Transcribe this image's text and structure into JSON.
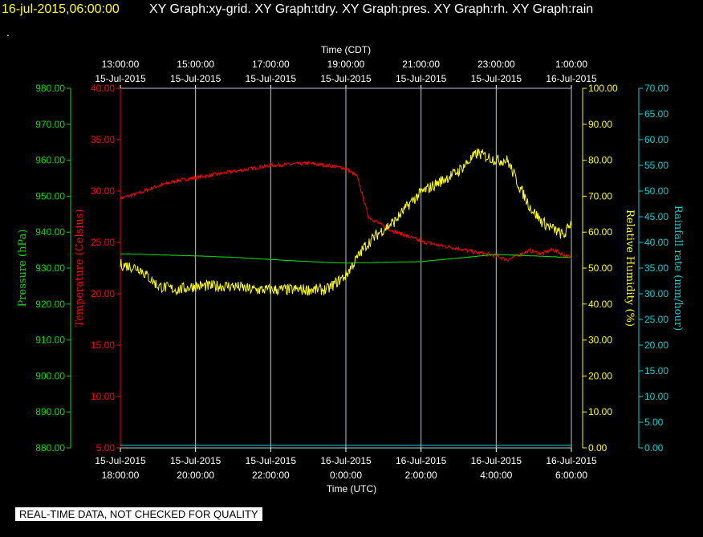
{
  "header": {
    "timestamp": "16-jul-2015,06:00:00",
    "graphs": "XY Graph:xy-grid.  XY Graph:tdry.  XY Graph:pres.  XY Graph:rh.  XY Graph:rain",
    "dot": "."
  },
  "footer": {
    "note": "REAL-TIME DATA, NOT CHECKED FOR QUALITY"
  },
  "colors": {
    "background": "#000000",
    "grid": "#b4c8d2",
    "pressure": "#00dd00",
    "temperature": "#ff0000",
    "humidity": "#ffff00",
    "rainfall": "#00d2d2",
    "text": "#ffffff"
  },
  "chart_data": {
    "type": "line",
    "grid": true,
    "x_range_hours_label": [
      "15-Jul-2015 18:00:00 UTC",
      "16-Jul-2015 6:00:00 UTC"
    ],
    "bottom_axis": {
      "label": "Time (UTC)",
      "ticks": [
        [
          "15-Jul-2015",
          "18:00:00"
        ],
        [
          "15-Jul-2015",
          "20:00:00"
        ],
        [
          "15-Jul-2015",
          "22:00:00"
        ],
        [
          "16-Jul-2015",
          "0:00:00"
        ],
        [
          "16-Jul-2015",
          "2:00:00"
        ],
        [
          "16-Jul-2015",
          "4:00:00"
        ],
        [
          "16-Jul-2015",
          "6:00:00"
        ]
      ]
    },
    "top_axis": {
      "label": "Time (CDT)",
      "ticks": [
        [
          "13:00:00",
          "15-Jul-2015"
        ],
        [
          "15:00:00",
          "15-Jul-2015"
        ],
        [
          "17:00:00",
          "15-Jul-2015"
        ],
        [
          "19:00:00",
          "15-Jul-2015"
        ],
        [
          "21:00:00",
          "15-Jul-2015"
        ],
        [
          "23:00:00",
          "15-Jul-2015"
        ],
        [
          "1:00:00",
          "16-Jul-2015"
        ]
      ]
    },
    "axes": {
      "pressure": {
        "label": "Pressure (hPa)",
        "min": 880,
        "max": 980,
        "ticks": [
          "880.00",
          "890.00",
          "900.00",
          "910.00",
          "920.00",
          "930.00",
          "940.00",
          "950.00",
          "960.00",
          "970.00",
          "980.00"
        ]
      },
      "temperature": {
        "label": "Temperature (Celsius)",
        "min": 5,
        "max": 40,
        "ticks": [
          "5.00",
          "10.00",
          "15.00",
          "20.00",
          "25.00",
          "30.00",
          "35.00",
          "40.00"
        ]
      },
      "humidity": {
        "label": "Relative Humidity (%)",
        "min": 0,
        "max": 100,
        "ticks": [
          "0.00",
          "10.00",
          "20.00",
          "30.00",
          "40.00",
          "50.00",
          "60.00",
          "70.00",
          "80.00",
          "90.00",
          "100.00"
        ]
      },
      "rainfall": {
        "label": "Rainfall rate (mm/hour)",
        "min": 0,
        "max": 70,
        "ticks": [
          "0.00",
          "5.00",
          "10.00",
          "15.00",
          "20.00",
          "25.00",
          "30.00",
          "35.00",
          "40.00",
          "45.00",
          "50.00",
          "55.00",
          "60.00",
          "65.00",
          "70.00"
        ]
      }
    },
    "series": [
      {
        "axis": "temperature",
        "hours": [
          0,
          0.5,
          1,
          1.5,
          2,
          2.5,
          3,
          3.5,
          4,
          4.5,
          5,
          5.5,
          6,
          6.3,
          6.6,
          6.9,
          7.2,
          7.5,
          7.8,
          8,
          8.5,
          9,
          9.5,
          10,
          10.3,
          10.6,
          10.9,
          11.2,
          11.5,
          11.8,
          12
        ],
        "values": [
          29.3,
          29.8,
          30.5,
          31.0,
          31.3,
          31.6,
          31.9,
          32.2,
          32.5,
          32.6,
          32.7,
          32.5,
          32.2,
          31.4,
          27.5,
          26.8,
          26.2,
          25.8,
          25.4,
          25.1,
          24.7,
          24.4,
          24.0,
          23.7,
          23.3,
          23.8,
          24.2,
          23.9,
          24.3,
          23.8,
          23.5
        ]
      },
      {
        "axis": "pressure",
        "hours": [
          0,
          1,
          2,
          3,
          4,
          5,
          6,
          7,
          8,
          9,
          10,
          11,
          12
        ],
        "values": [
          934.0,
          933.7,
          933.4,
          933.0,
          932.4,
          931.8,
          931.4,
          931.6,
          931.8,
          932.8,
          933.8,
          933.4,
          932.9
        ]
      },
      {
        "axis": "humidity",
        "hours": [
          0,
          0.5,
          1,
          1.5,
          2,
          2.5,
          3,
          3.5,
          4,
          4.5,
          5,
          5.5,
          6,
          6.5,
          6.9,
          7.3,
          7.7,
          8,
          8.5,
          9,
          9.5,
          10,
          10.3,
          10.6,
          10.9,
          11.2,
          11.5,
          11.8,
          12
        ],
        "values": [
          51,
          50,
          45,
          44,
          45,
          45,
          45,
          44,
          44,
          44,
          44,
          44,
          48,
          56,
          60,
          63,
          68,
          71,
          74,
          77,
          82,
          80,
          80,
          73,
          67,
          63,
          61,
          59,
          63
        ]
      },
      {
        "axis": "rainfall",
        "hours": [
          0,
          12
        ],
        "values": [
          0.5,
          0.5
        ]
      }
    ]
  }
}
